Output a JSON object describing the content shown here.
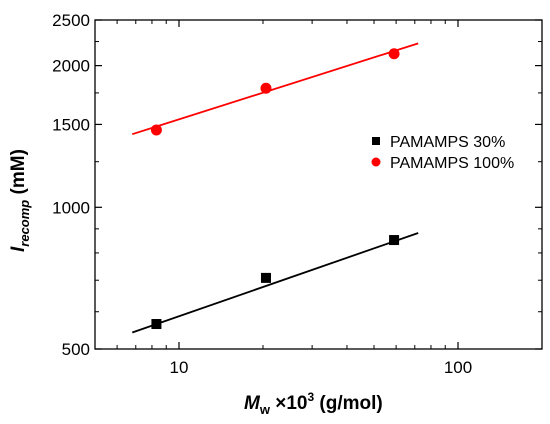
{
  "chart_data": {
    "type": "scatter",
    "x_scale": "log",
    "y_scale": "log",
    "xlim": [
      5,
      200
    ],
    "ylim": [
      500,
      2500
    ],
    "x_ticks": [
      10,
      100
    ],
    "x_tick_labels": [
      "10",
      "100"
    ],
    "y_ticks": [
      500,
      1000,
      1500,
      2000,
      2500
    ],
    "y_tick_labels": [
      "500",
      "1000",
      "1500",
      "2000",
      "2500"
    ],
    "xlabel": {
      "main": "M",
      "sub": "w",
      "mid": " ×10",
      "sup": "3",
      "tail": " (g/mol)"
    },
    "ylabel": {
      "main": "I",
      "sub": "recomp",
      "tail": " (mM)"
    },
    "legend_position": "right",
    "series": [
      {
        "name": "PAMAMPS 30%",
        "marker": "square",
        "color": "#000000",
        "points": [
          {
            "x": 8.3,
            "y": 565
          },
          {
            "x": 20.5,
            "y": 708
          },
          {
            "x": 59,
            "y": 852
          }
        ],
        "fit_line": {
          "x": [
            6.8,
            72
          ],
          "y": [
            542,
            882
          ]
        }
      },
      {
        "name": "PAMAMPS 100%",
        "marker": "circle",
        "color": "#ff0000",
        "points": [
          {
            "x": 8.3,
            "y": 1460
          },
          {
            "x": 20.5,
            "y": 1790
          },
          {
            "x": 59,
            "y": 2120
          }
        ],
        "fit_line": {
          "x": [
            6.8,
            72
          ],
          "y": [
            1430,
            2230
          ]
        }
      }
    ]
  }
}
